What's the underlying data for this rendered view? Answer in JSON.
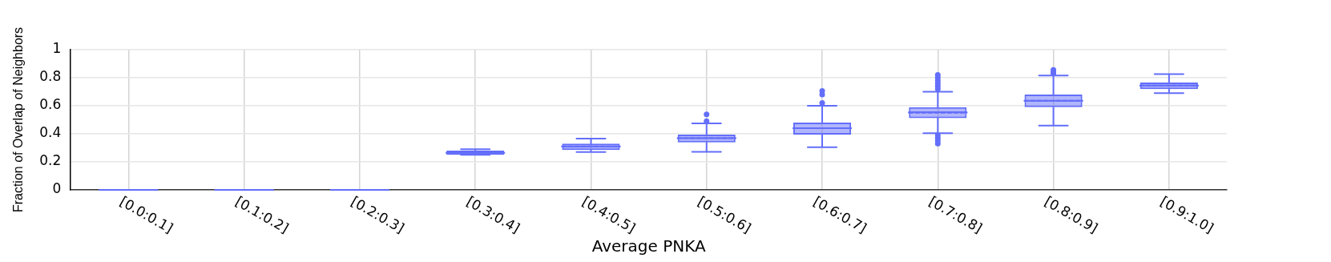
{
  "chart_data": {
    "type": "box",
    "xlabel": "Average PNKA",
    "ylabel": "Fraction of Overlap of Neighbors",
    "categories": [
      "[0.0:0.1]",
      "[0.1:0.2]",
      "[0.2:0.3]",
      "[0.3:0.4]",
      "[0.4:0.5]",
      "[0.5:0.6]",
      "[0.6:0.7]",
      "[0.7:0.8]",
      "[0.8:0.9]",
      "[0.9:1.0]"
    ],
    "series": [
      {
        "color": "#636efa",
        "boxes": [
          {
            "low": 0,
            "q1": 0,
            "median": 0,
            "q3": 0,
            "high": 0,
            "mean": 0
          },
          {
            "low": 0,
            "q1": 0,
            "median": 0,
            "q3": 0,
            "high": 0,
            "mean": 0
          },
          {
            "low": 0,
            "q1": 0,
            "median": 0,
            "q3": 0,
            "high": 0,
            "mean": 0
          },
          {
            "low": 0.25,
            "q1": 0.25,
            "median": 0.265,
            "q3": 0.28,
            "high": 0.29,
            "mean": 0.265
          },
          {
            "low": 0.27,
            "q1": 0.284,
            "median": 0.31,
            "q3": 0.33,
            "high": 0.366,
            "mean": 0.31
          },
          {
            "low": 0.272,
            "q1": 0.338,
            "median": 0.368,
            "q3": 0.394,
            "high": 0.474,
            "mean": 0.37,
            "outliers": [
              0.49,
              0.538
            ]
          },
          {
            "low": 0.304,
            "q1": 0.394,
            "median": 0.44,
            "q3": 0.48,
            "high": 0.6,
            "mean": 0.44,
            "outliers": [
              0.62,
              0.68,
              0.706
            ]
          },
          {
            "low": 0.404,
            "q1": 0.512,
            "median": 0.554,
            "q3": 0.59,
            "high": 0.7,
            "mean": 0.55,
            "outliers": [
              0.33,
              0.35,
              0.37,
              0.39,
              0.72,
              0.74,
              0.76,
              0.78,
              0.8,
              0.82
            ]
          },
          {
            "low": 0.458,
            "q1": 0.59,
            "median": 0.636,
            "q3": 0.68,
            "high": 0.816,
            "mean": 0.636,
            "outliers": [
              0.83,
              0.84,
              0.856
            ]
          },
          {
            "low": 0.69,
            "q1": 0.718,
            "median": 0.744,
            "q3": 0.766,
            "high": 0.826,
            "mean": 0.744
          }
        ]
      }
    ],
    "ylim": [
      0,
      1
    ],
    "yticks": [
      0,
      0.2,
      0.4,
      0.6,
      0.8,
      1
    ],
    "grid": true,
    "legend": false
  }
}
